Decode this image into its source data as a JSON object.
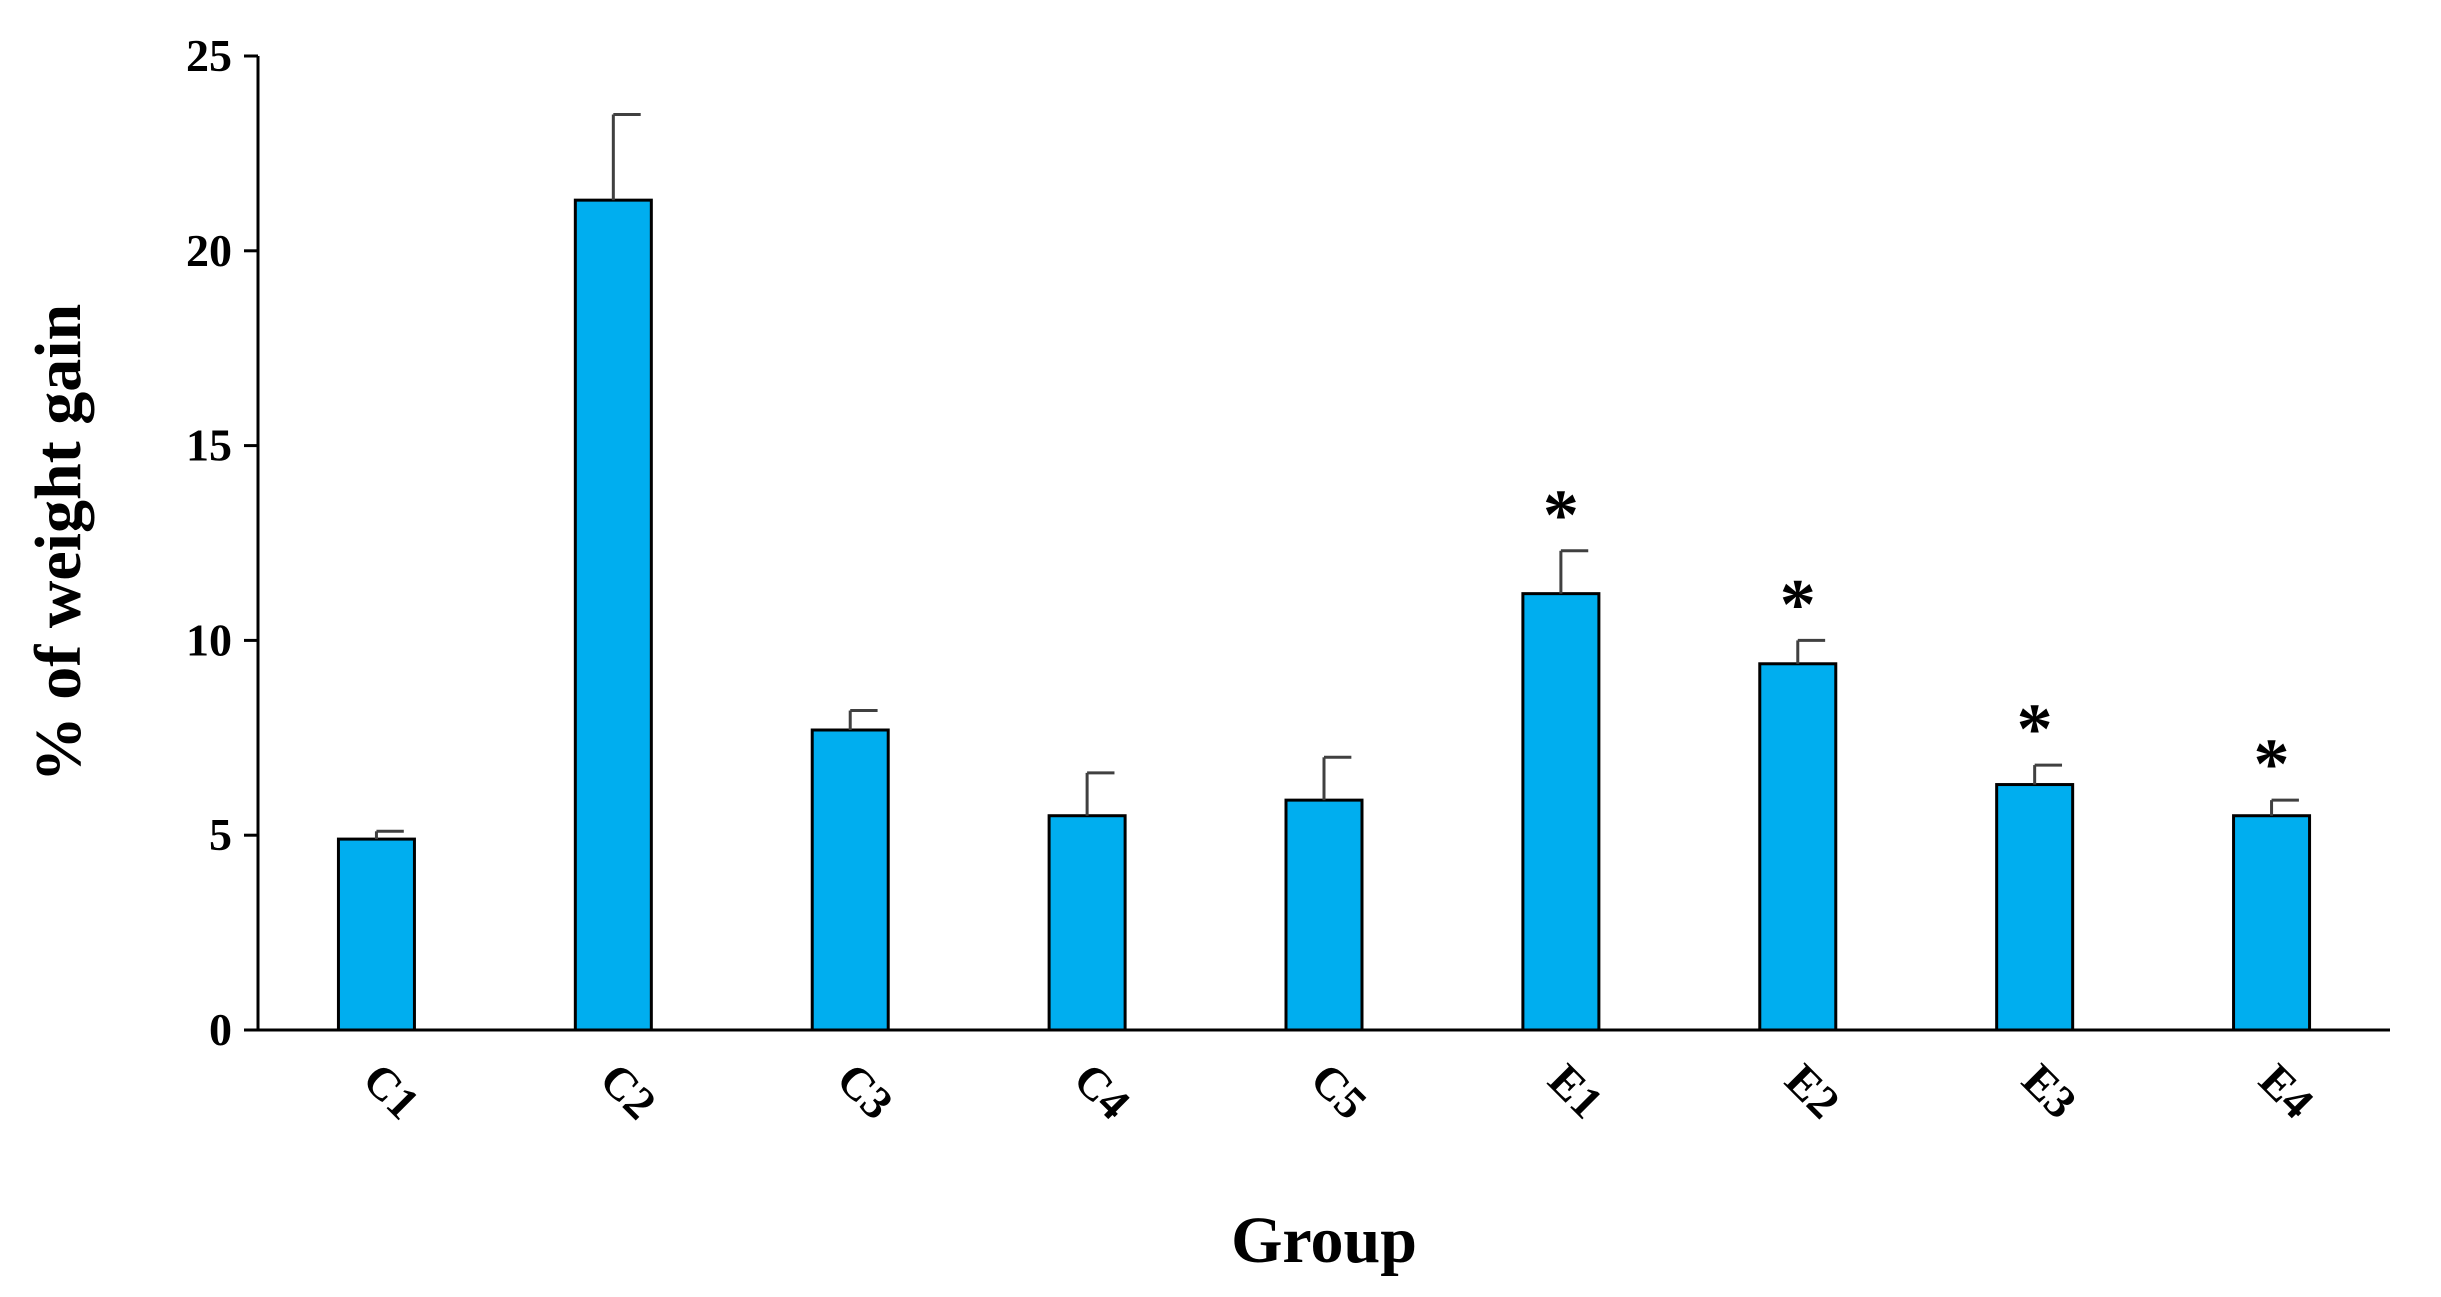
{
  "chart_data": {
    "type": "bar",
    "title": "",
    "xlabel": "Group",
    "ylabel": "% of weight gain",
    "ylim": [
      0,
      25
    ],
    "yticks": [
      0,
      5,
      10,
      15,
      20,
      25
    ],
    "categories": [
      "C1",
      "C2",
      "C3",
      "C4",
      "C5",
      "E1",
      "E2",
      "E3",
      "E4"
    ],
    "values": [
      4.9,
      21.3,
      7.7,
      5.5,
      5.9,
      11.2,
      9.4,
      6.3,
      5.5
    ],
    "errors": [
      0.2,
      2.2,
      0.5,
      1.1,
      1.1,
      1.1,
      0.6,
      0.5,
      0.4
    ],
    "significance": [
      "",
      "",
      "",
      "",
      "",
      "*",
      "*",
      "*",
      "*"
    ],
    "bar_color": "#00AEEF",
    "bar_edge_color": "#000000",
    "grid": false,
    "legend": "none"
  }
}
